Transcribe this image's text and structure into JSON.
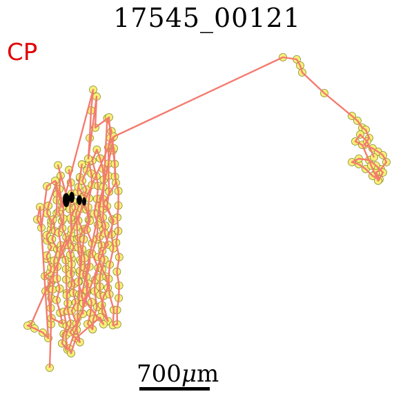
{
  "title": "17545_00121",
  "tag": "CP",
  "scalebar": {
    "value": "700",
    "unit_symbol": "μ",
    "unit_suffix": "m"
  },
  "colors": {
    "track_line": "#f47b6e",
    "track_point_fill": "#f7f07a",
    "track_point_stroke": "#8a8a2a",
    "cluster_core": "#000000",
    "tag": "#e00000"
  }
}
